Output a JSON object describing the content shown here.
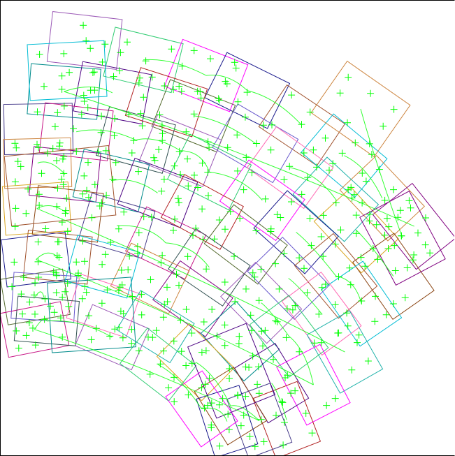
{
  "view": {
    "description_free": true,
    "background_color": "#ffffff",
    "frame_color": "#000000",
    "marker_color": "#00ff00"
  },
  "tiles": {
    "palette": [
      "#9b59b6",
      "#2ecc71",
      "#ff00ff",
      "#1a1a8c",
      "#a0522d",
      "#00bcd4",
      "#cd853f",
      "#800080",
      "#008b8b",
      "#4b0082",
      "#b22222",
      "#556b2f",
      "#6a5acd",
      "#ff69b4",
      "#20b2aa",
      "#daa520",
      "#8b4513",
      "#483d8b",
      "#c71585",
      "#2f4f4f"
    ]
  },
  "markers": {
    "color": "#00ff00",
    "symbol": "plus"
  }
}
